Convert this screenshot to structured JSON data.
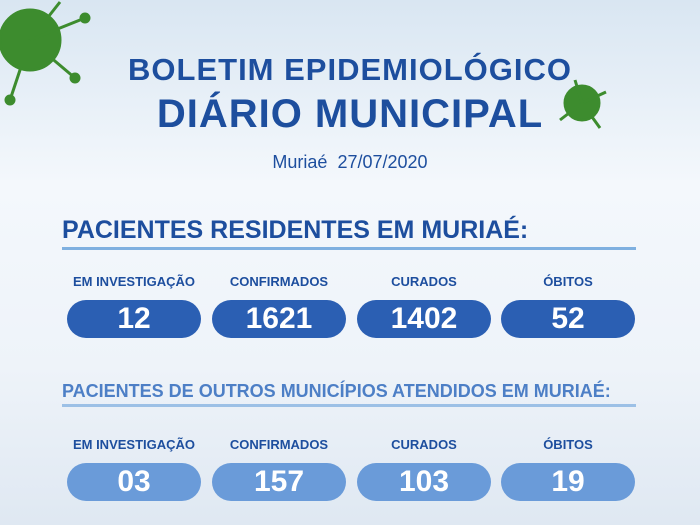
{
  "header": {
    "title_line1": "BOLETIM EPIDEMIOLÓGICO",
    "title_line2": "DIÁRIO MUNICIPAL",
    "city": "Muriaé",
    "date": "27/07/2020"
  },
  "sections": [
    {
      "heading": "PACIENTES RESIDENTES EM MURIAÉ:",
      "stats": [
        {
          "label": "EM INVESTIGAÇÃO",
          "value": "12"
        },
        {
          "label": "CONFIRMADOS",
          "value": "1621"
        },
        {
          "label": "CURADOS",
          "value": "1402"
        },
        {
          "label": "ÓBITOS",
          "value": "52"
        }
      ]
    },
    {
      "heading": "PACIENTES DE OUTROS MUNICÍPIOS ATENDIDOS EM MURIAÉ:",
      "stats": [
        {
          "label": "EM INVESTIGAÇÃO",
          "value": "03"
        },
        {
          "label": "CONFIRMADOS",
          "value": "157"
        },
        {
          "label": "CURADOS",
          "value": "103"
        },
        {
          "label": "ÓBITOS",
          "value": "19"
        }
      ]
    }
  ]
}
